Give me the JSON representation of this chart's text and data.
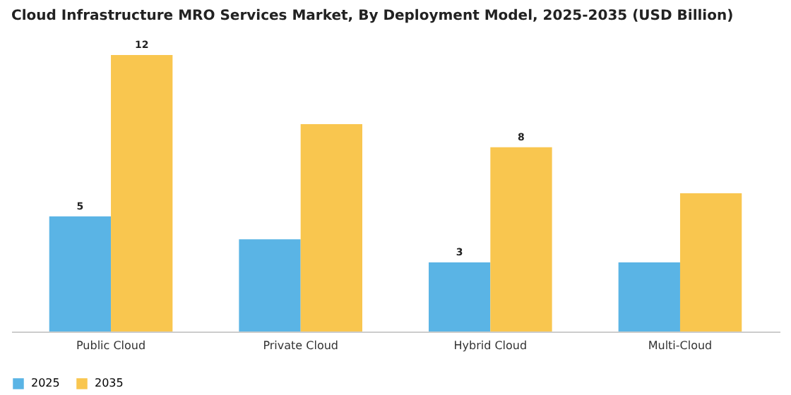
{
  "chart_data": {
    "type": "bar",
    "title": "Cloud Infrastructure MRO Services Market, By Deployment Model, 2025-2035 (USD Billion)",
    "categories": [
      "Public Cloud",
      "Private Cloud",
      "Hybrid Cloud",
      "Multi-Cloud"
    ],
    "series": [
      {
        "name": "2025",
        "color": "#5ab4e5",
        "values": [
          5,
          4,
          3,
          3
        ],
        "value_labels": [
          "5",
          null,
          "3",
          null
        ]
      },
      {
        "name": "2035",
        "color": "#f9c64f",
        "values": [
          12,
          9,
          8,
          6
        ],
        "value_labels": [
          "12",
          null,
          "8",
          null
        ]
      }
    ],
    "legend": "bottom",
    "grid": false
  }
}
